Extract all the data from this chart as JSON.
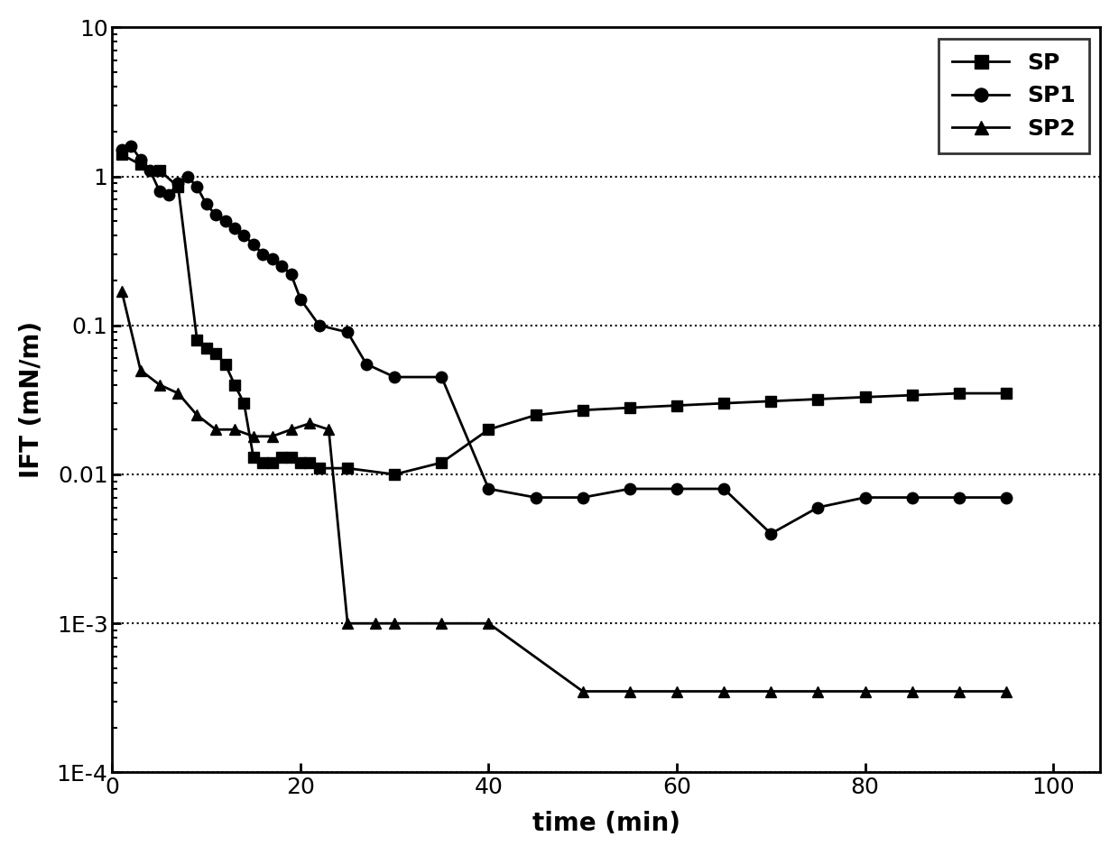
{
  "title": "",
  "xlabel": "time (min)",
  "ylabel": "IFT (mN/m)",
  "xlim": [
    0,
    105
  ],
  "ylim_log": [
    0.0001,
    10
  ],
  "background_color": "#ffffff",
  "line_color": "#000000",
  "SP": {
    "x": [
      1,
      3,
      5,
      7,
      9,
      10,
      11,
      12,
      13,
      14,
      15,
      16,
      17,
      18,
      19,
      20,
      21,
      22,
      25,
      30,
      35,
      40,
      45,
      50,
      55,
      60,
      65,
      70,
      75,
      80,
      85,
      90,
      95
    ],
    "y": [
      1.4,
      1.2,
      1.1,
      0.85,
      0.08,
      0.07,
      0.065,
      0.055,
      0.04,
      0.03,
      0.013,
      0.012,
      0.012,
      0.013,
      0.013,
      0.012,
      0.012,
      0.011,
      0.011,
      0.01,
      0.012,
      0.02,
      0.025,
      0.027,
      0.028,
      0.029,
      0.03,
      0.031,
      0.032,
      0.033,
      0.034,
      0.035,
      0.035
    ]
  },
  "SP1": {
    "x": [
      1,
      2,
      3,
      4,
      5,
      6,
      7,
      8,
      9,
      10,
      11,
      12,
      13,
      14,
      15,
      16,
      17,
      18,
      19,
      20,
      22,
      25,
      27,
      30,
      35,
      40,
      45,
      50,
      55,
      60,
      65,
      70,
      75,
      80,
      85,
      90,
      95
    ],
    "y": [
      1.5,
      1.6,
      1.3,
      1.1,
      0.8,
      0.75,
      0.9,
      1.0,
      0.85,
      0.65,
      0.55,
      0.5,
      0.45,
      0.4,
      0.35,
      0.3,
      0.28,
      0.25,
      0.22,
      0.15,
      0.1,
      0.09,
      0.055,
      0.045,
      0.045,
      0.008,
      0.007,
      0.007,
      0.008,
      0.008,
      0.008,
      0.004,
      0.006,
      0.007,
      0.007,
      0.007,
      0.007
    ]
  },
  "SP2": {
    "x": [
      1,
      3,
      5,
      7,
      9,
      11,
      13,
      15,
      17,
      19,
      21,
      23,
      25,
      28,
      30,
      35,
      40,
      50,
      55,
      60,
      65,
      70,
      75,
      80,
      85,
      90,
      95
    ],
    "y": [
      0.17,
      0.05,
      0.04,
      0.035,
      0.025,
      0.02,
      0.02,
      0.018,
      0.018,
      0.02,
      0.022,
      0.02,
      0.001,
      0.001,
      0.001,
      0.001,
      0.001,
      0.00035,
      0.00035,
      0.00035,
      0.00035,
      0.00035,
      0.00035,
      0.00035,
      0.00035,
      0.00035,
      0.00035
    ]
  },
  "legend_labels": [
    "SP",
    "SP1",
    "SP2"
  ],
  "marker_SP": "s",
  "marker_SP1": "o",
  "marker_SP2": "^",
  "xticks": [
    0,
    20,
    40,
    60,
    80,
    100
  ],
  "ytick_labels": [
    "10",
    "1",
    "0.1",
    "0.01",
    "1E-3",
    "1E-4"
  ],
  "ytick_values": [
    10,
    1,
    0.1,
    0.01,
    0.001,
    0.0001
  ]
}
